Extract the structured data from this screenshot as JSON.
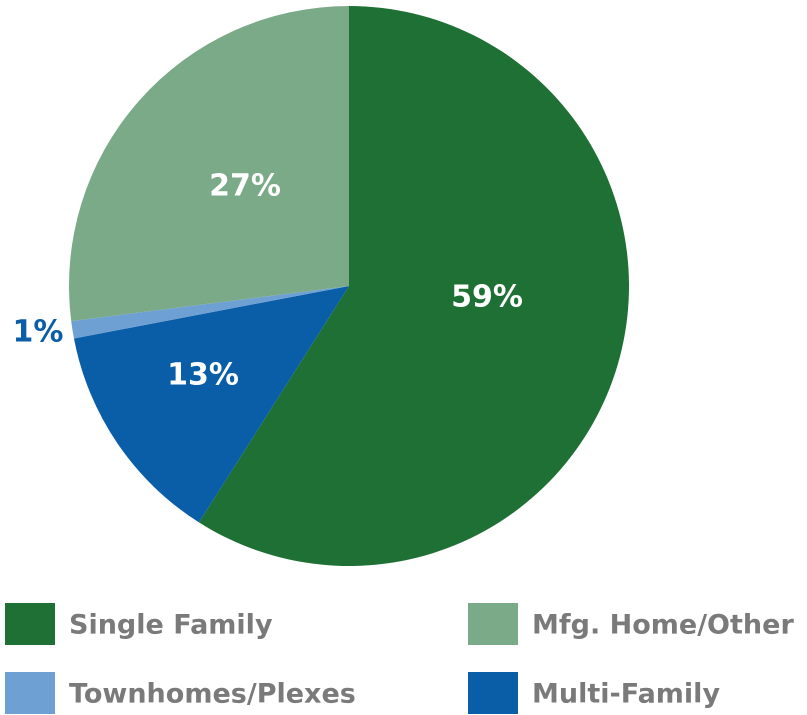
{
  "chart_data": {
    "type": "pie",
    "categories": [
      "Single Family",
      "Multi-Family",
      "Townhomes/Plexes",
      "Mfg. Home/Other"
    ],
    "values": [
      59,
      13,
      1,
      27
    ],
    "value_labels": [
      "59%",
      "13%",
      "1%",
      "27%"
    ],
    "colors": [
      "#1e7035",
      "#0a5ea8",
      "#6fa0d4",
      "#7aaa88"
    ]
  }
}
